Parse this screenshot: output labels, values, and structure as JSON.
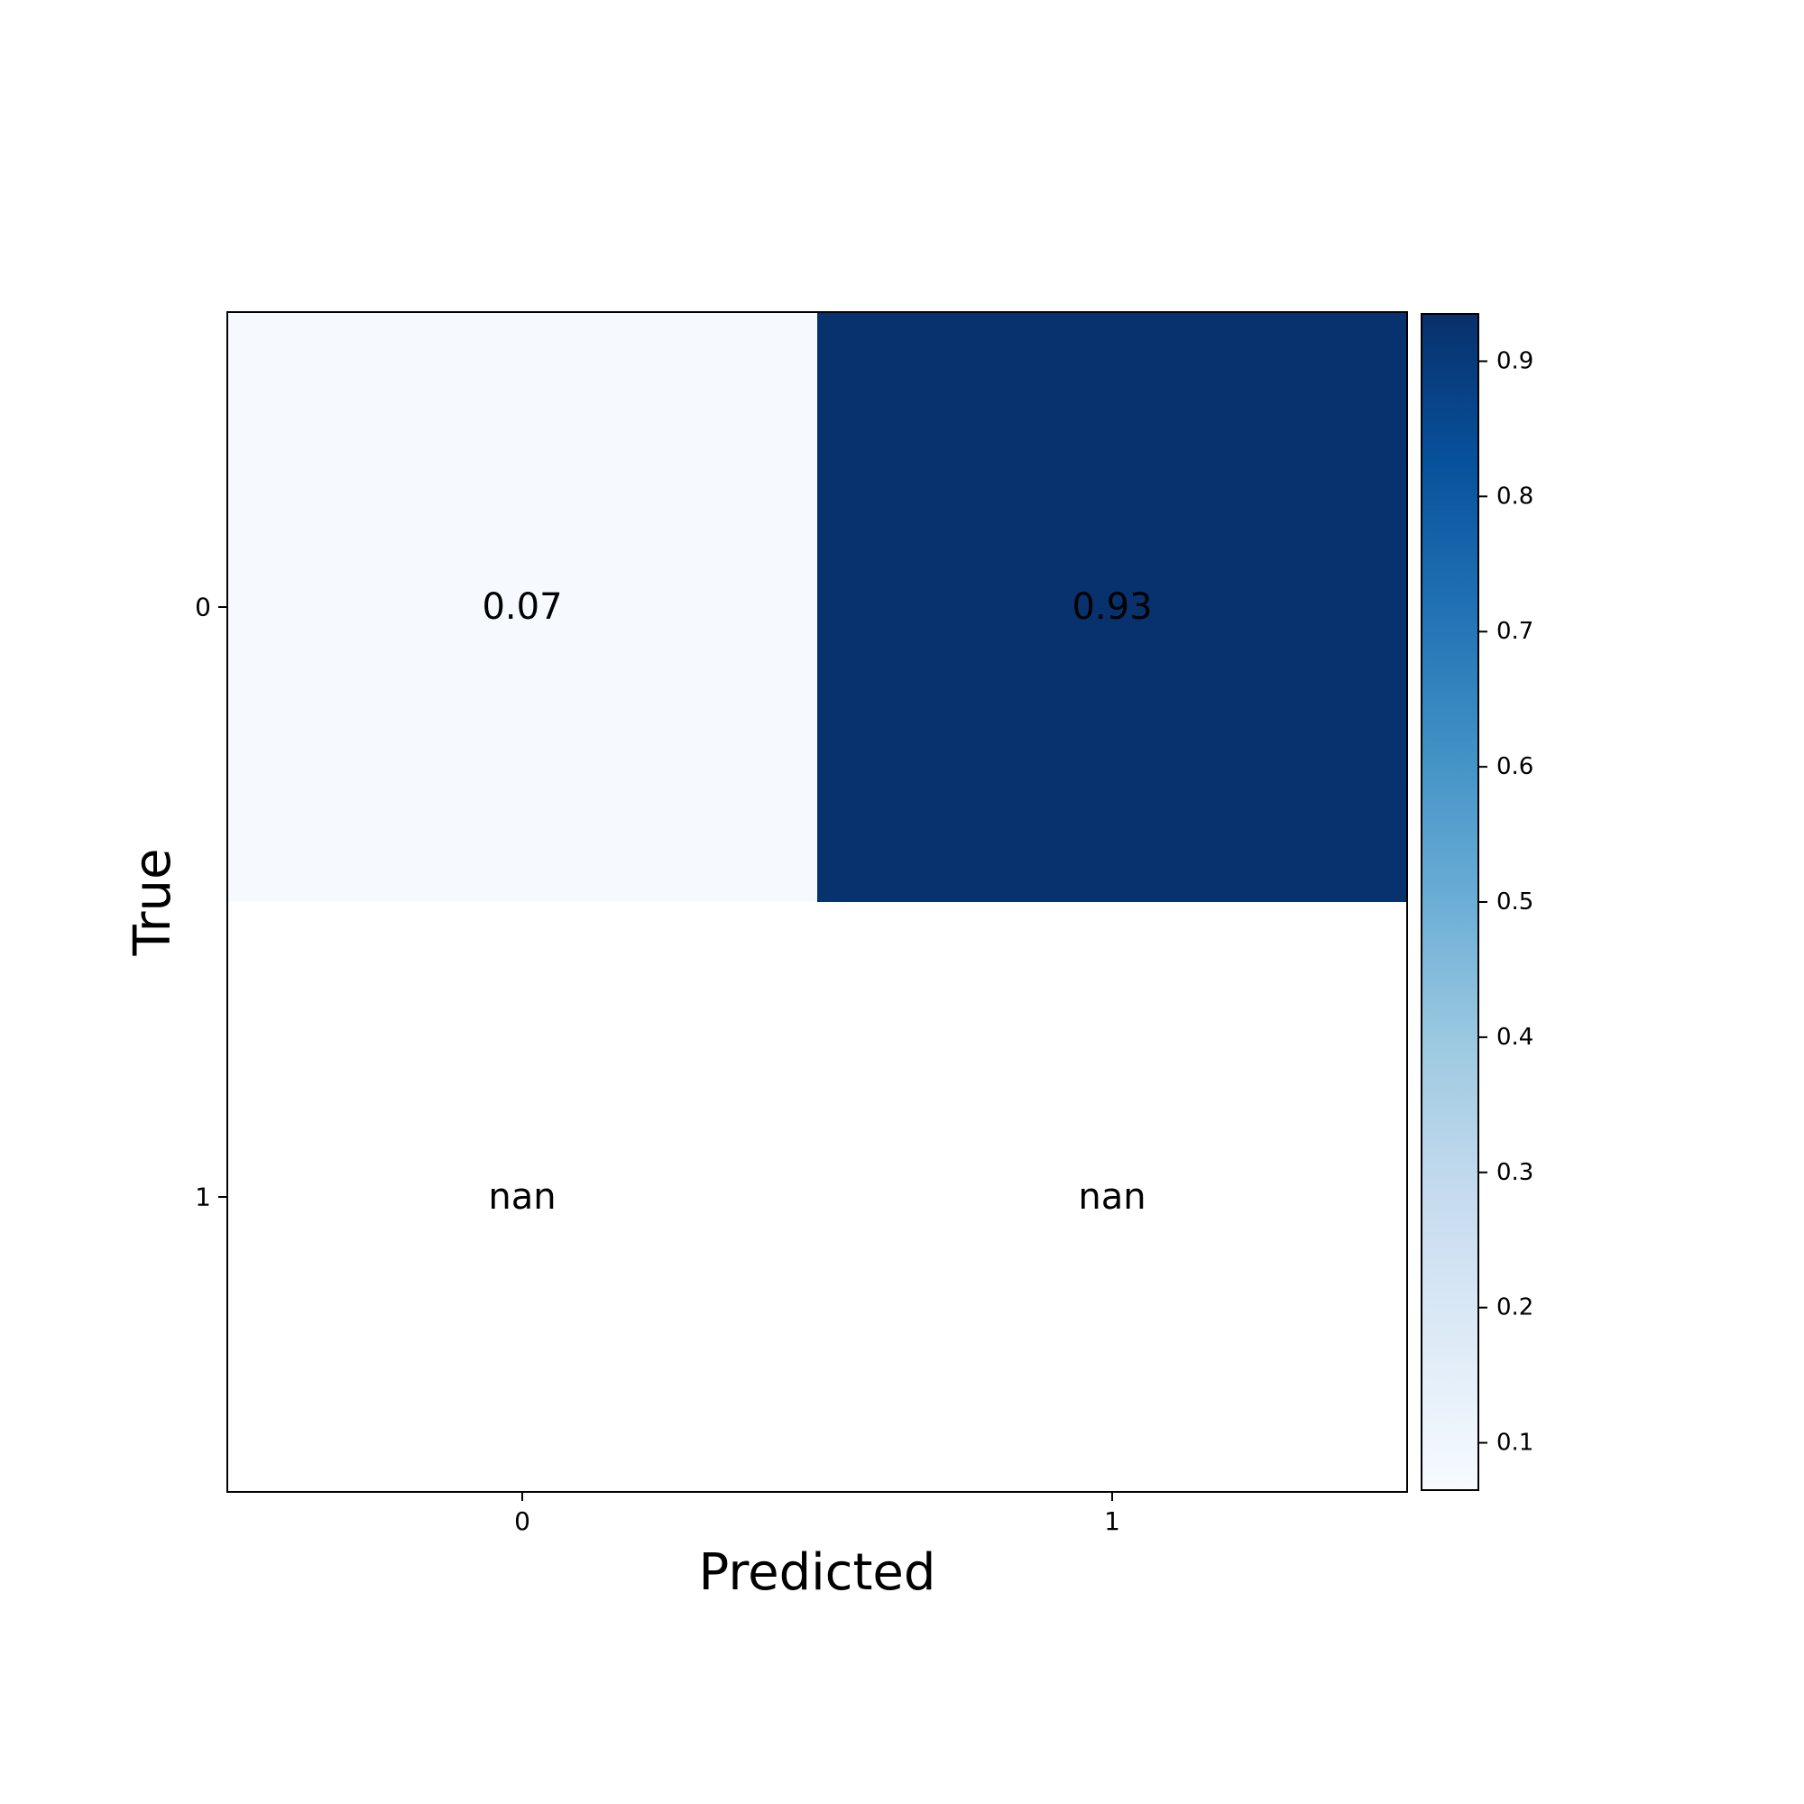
{
  "chart_data": {
    "type": "heatmap",
    "x_categories": [
      "0",
      "1"
    ],
    "y_categories": [
      "0",
      "1"
    ],
    "values": [
      [
        0.07,
        0.93
      ],
      [
        null,
        null
      ]
    ],
    "cell_labels": [
      [
        "0.07",
        "0.93"
      ],
      [
        "nan",
        "nan"
      ]
    ],
    "xlabel": "Predicted",
    "ylabel": "True",
    "colormap": "Blues",
    "colormap_stops": [
      "#f7fbff",
      "#deebf7",
      "#c6dbef",
      "#9ecae1",
      "#6baed6",
      "#4292c6",
      "#2171b5",
      "#08519c",
      "#08306b"
    ],
    "nan_color": "#ffffff",
    "colorbar": {
      "range": [
        0.065,
        0.935
      ],
      "ticks": [
        0.1,
        0.2,
        0.3,
        0.4,
        0.5,
        0.6,
        0.7,
        0.8,
        0.9
      ],
      "tick_labels": [
        "0.1",
        "0.2",
        "0.3",
        "0.4",
        "0.5",
        "0.6",
        "0.7",
        "0.8",
        "0.9"
      ]
    },
    "grid": false
  }
}
